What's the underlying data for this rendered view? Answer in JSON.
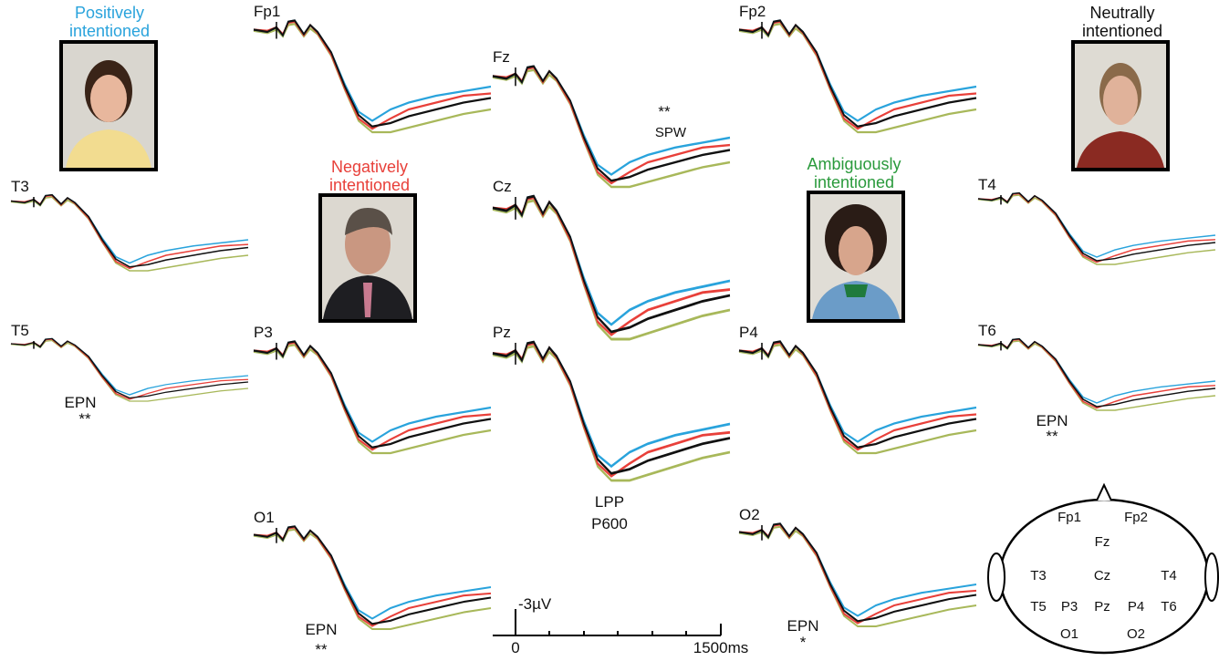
{
  "faces": [
    {
      "label": [
        "Positively",
        "intentioned"
      ]
    },
    {
      "label": [
        "Negatively",
        "intentioned"
      ]
    },
    {
      "label": [
        "Ambiguously",
        "intentioned"
      ]
    },
    {
      "label": [
        "Neutrally",
        "intentioned"
      ]
    }
  ],
  "panels": [
    {
      "label": "Fp1"
    },
    {
      "label": "Fp2"
    },
    {
      "label": "Fz"
    },
    {
      "label": "T3"
    },
    {
      "label": "T4"
    },
    {
      "label": "Cz"
    },
    {
      "label": "T5"
    },
    {
      "label": "P3"
    },
    {
      "label": "Pz"
    },
    {
      "label": "P4"
    },
    {
      "label": "T6"
    },
    {
      "label": "O1"
    },
    {
      "label": "O2"
    }
  ],
  "annotations": [
    {
      "text": "**"
    },
    {
      "text": "SPW"
    },
    {
      "text": "EPN"
    },
    {
      "text": "**"
    },
    {
      "text": "EPN"
    },
    {
      "text": "**"
    },
    {
      "text": "LPP"
    },
    {
      "text": "P600"
    },
    {
      "text": "EPN"
    },
    {
      "text": "**"
    },
    {
      "text": "EPN"
    },
    {
      "text": "*"
    }
  ],
  "scale": {
    "amplitude": "-3µV",
    "start": "0",
    "end": "1500ms"
  },
  "head": {
    "electrodes": [
      "Fp1",
      "Fp2",
      "Fz",
      "T3",
      "Cz",
      "T4",
      "T5",
      "P3",
      "Pz",
      "P4",
      "T6",
      "O1",
      "O2"
    ]
  }
}
